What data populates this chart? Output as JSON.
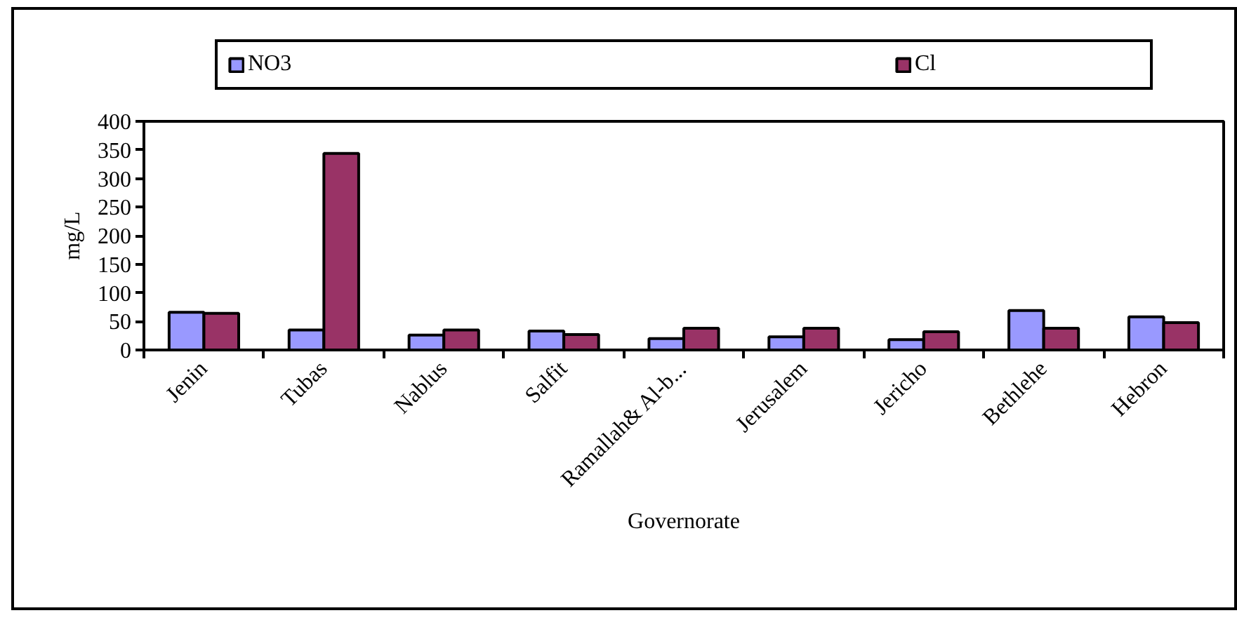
{
  "chart_data": {
    "type": "bar",
    "xlabel": "Governorate",
    "ylabel": "mg/L",
    "categories": [
      "Jenin",
      "Tubas",
      "Nablus",
      "Salfit",
      "Ramallah& Al-b...",
      "Jerusalem",
      "Jericho",
      "Bethlehe",
      "Hebron"
    ],
    "series": [
      {
        "name": "NO3",
        "color": "#9999ff",
        "values": [
          66,
          35,
          26,
          33,
          20,
          23,
          18,
          69,
          58
        ]
      },
      {
        "name": "Cl",
        "color": "#993366",
        "values": [
          64,
          344,
          35,
          27,
          38,
          38,
          32,
          38,
          48
        ]
      }
    ],
    "ylim": [
      0,
      400
    ],
    "yticks": [
      0,
      50,
      100,
      150,
      200,
      250,
      300,
      350,
      400
    ],
    "grid": false,
    "legend": "top"
  }
}
